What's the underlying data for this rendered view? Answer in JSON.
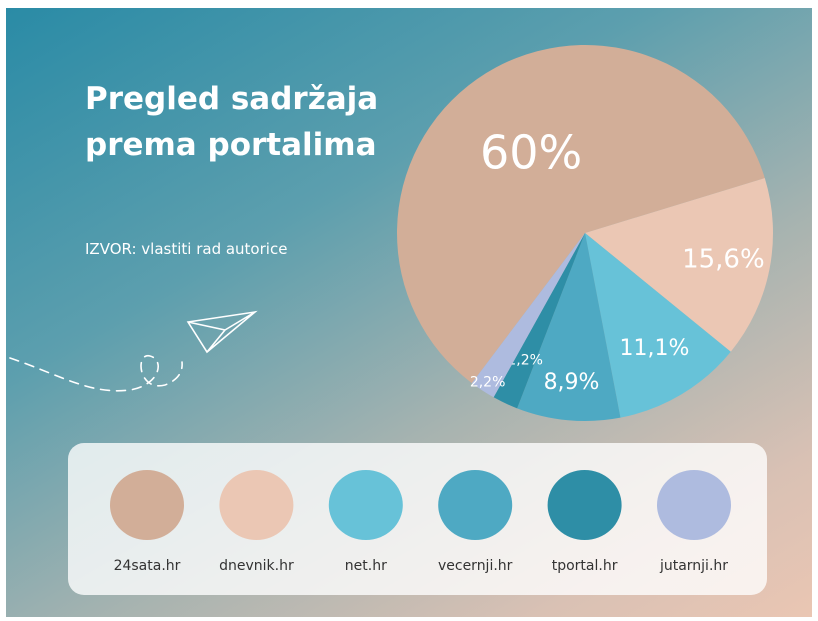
{
  "chart_data": {
    "type": "pie",
    "title": "Pregled sadržaja prema portalima",
    "source": "IZVOR: vlastiti rad autorice",
    "categories": [
      "24sata.hr",
      "dnevnik.hr",
      "net.hr",
      "vecernji.hr",
      "tportal.hr",
      "jutarnji.hr"
    ],
    "values": [
      60,
      15.6,
      11.1,
      8.9,
      2.2,
      2.2
    ],
    "value_labels": [
      "60%",
      "15,6%",
      "11,1%",
      "8,9%",
      "2,2%",
      "2,2%"
    ],
    "colors": [
      "#d2ae98",
      "#ebc7b4",
      "#67c2d8",
      "#4ea9c3",
      "#2e8ea6",
      "#aebbdf"
    ]
  }
}
